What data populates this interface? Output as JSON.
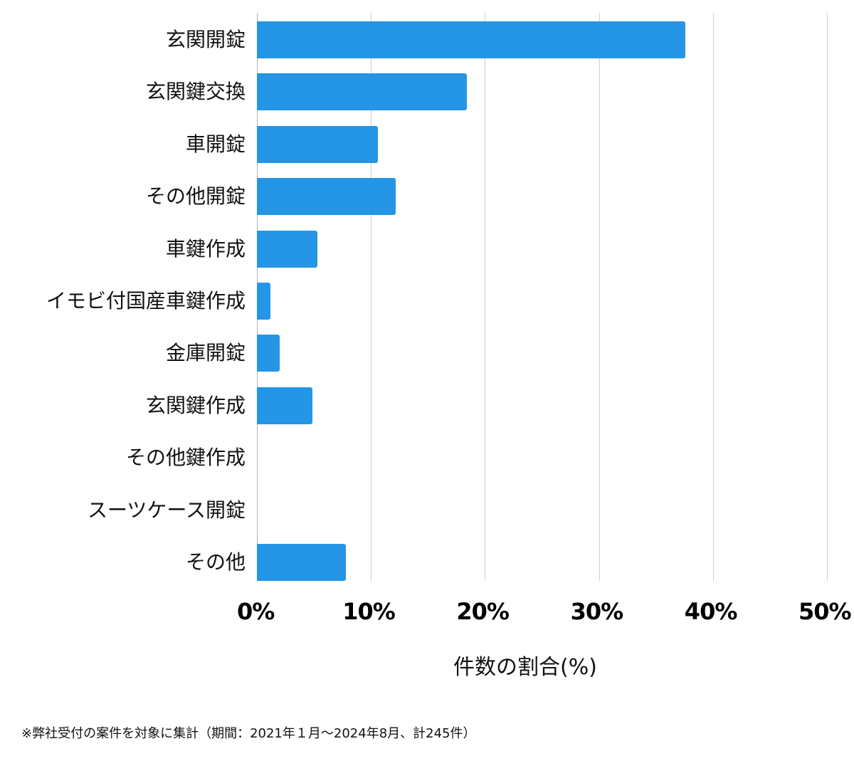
{
  "chart_data": {
    "type": "bar",
    "orientation": "horizontal",
    "title": "",
    "xlabel": "件数の割合(%)",
    "ylabel": "",
    "xlim": [
      0,
      50
    ],
    "x_ticks": [
      "0%",
      "10%",
      "20%",
      "30%",
      "40%",
      "50%"
    ],
    "grid": true,
    "legend": null,
    "categories": [
      "玄関開錠",
      "玄関鍵交換",
      "車開錠",
      "その他開錠",
      "車鍵作成",
      "イモビ付国産車鍵作成",
      "金庫開錠",
      "玄関鍵作成",
      "その他鍵作成",
      "スーツケース開錠",
      "その他"
    ],
    "values": [
      37.6,
      18.4,
      10.6,
      12.2,
      5.3,
      1.2,
      2.0,
      4.9,
      0,
      0,
      7.8
    ],
    "bar_color": "#2595e5",
    "annotation": "※弊社受付の案件を対象に集計（期間：2021年１月〜2024年8月、計245件）"
  },
  "axis": {
    "x_title": "件数の割合(%)",
    "ticks": [
      "0%",
      "10%",
      "20%",
      "30%",
      "40%",
      "50%"
    ]
  },
  "footnote": "※弊社受付の案件を対象に集計（期間：2021年１月〜2024年8月、計245件）"
}
